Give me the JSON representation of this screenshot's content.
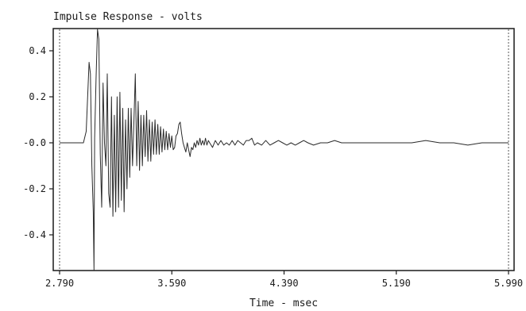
{
  "chart_data": {
    "type": "line",
    "title": "Impulse Response - volts",
    "xlabel": "Time - msec",
    "ylabel": "",
    "xlim": [
      2.79,
      5.99
    ],
    "ylim": [
      -0.6,
      0.6
    ],
    "x_ticks": [
      2.79,
      3.59,
      4.39,
      5.19,
      5.99
    ],
    "x_tick_labels": [
      "2.790",
      "3.590",
      "4.390",
      "5.190",
      "5.990"
    ],
    "y_ticks": [
      0.4,
      0.2,
      0.0,
      -0.2,
      -0.4
    ],
    "y_tick_labels": [
      "0.4",
      "0.2",
      "-0.0",
      "-0.2",
      "-0.4"
    ],
    "grid": false,
    "legend": "none",
    "colors": {
      "line": "#2a2a2a",
      "axes": "#1a1a1a",
      "background": "#ffffff"
    },
    "series": [
      {
        "x": [
          2.79,
          2.92,
          2.96,
          2.98,
          3.0,
          3.01,
          3.02,
          3.03,
          3.035,
          3.04,
          3.05,
          3.06,
          3.07,
          3.08,
          3.09,
          3.1,
          3.11,
          3.12,
          3.13,
          3.14,
          3.15,
          3.16,
          3.17,
          3.18,
          3.19,
          3.2,
          3.21,
          3.22,
          3.23,
          3.24,
          3.25,
          3.26,
          3.27,
          3.28,
          3.29,
          3.3,
          3.31,
          3.32,
          3.33,
          3.34,
          3.35,
          3.36,
          3.37,
          3.38,
          3.39,
          3.4,
          3.41,
          3.42,
          3.43,
          3.44,
          3.45,
          3.46,
          3.47,
          3.48,
          3.49,
          3.5,
          3.51,
          3.52,
          3.53,
          3.54,
          3.55,
          3.56,
          3.57,
          3.58,
          3.59,
          3.6,
          3.61,
          3.62,
          3.63,
          3.64,
          3.65,
          3.66,
          3.67,
          3.68,
          3.69,
          3.7,
          3.71,
          3.72,
          3.73,
          3.74,
          3.75,
          3.76,
          3.77,
          3.78,
          3.79,
          3.8,
          3.81,
          3.82,
          3.83,
          3.84,
          3.85,
          3.86,
          3.88,
          3.9,
          3.92,
          3.94,
          3.96,
          3.98,
          4.0,
          4.02,
          4.04,
          4.06,
          4.08,
          4.1,
          4.12,
          4.14,
          4.16,
          4.18,
          4.2,
          4.23,
          4.26,
          4.29,
          4.32,
          4.35,
          4.38,
          4.41,
          4.44,
          4.47,
          4.5,
          4.53,
          4.56,
          4.6,
          4.65,
          4.7,
          4.75,
          4.8,
          4.85,
          4.9,
          4.95,
          5.0,
          5.05,
          5.1,
          5.15,
          5.2,
          5.3,
          5.4,
          5.5,
          5.6,
          5.7,
          5.8,
          5.9,
          5.99
        ],
        "y": [
          0.0,
          0.0,
          0.0,
          0.05,
          0.35,
          0.3,
          -0.1,
          -0.3,
          -0.6,
          0.02,
          0.28,
          0.55,
          0.45,
          -0.05,
          -0.28,
          0.26,
          0.0,
          -0.1,
          0.3,
          -0.22,
          -0.28,
          0.2,
          -0.32,
          0.12,
          -0.3,
          0.2,
          -0.28,
          0.22,
          -0.25,
          0.15,
          -0.3,
          0.1,
          -0.2,
          0.15,
          -0.15,
          0.15,
          -0.1,
          0.1,
          0.3,
          -0.1,
          0.18,
          -0.12,
          0.12,
          -0.1,
          0.12,
          -0.06,
          0.14,
          -0.08,
          0.1,
          -0.08,
          0.09,
          -0.05,
          0.1,
          -0.05,
          0.08,
          -0.05,
          0.07,
          -0.04,
          0.06,
          -0.03,
          0.05,
          -0.03,
          0.04,
          -0.02,
          0.03,
          -0.03,
          -0.02,
          0.03,
          0.04,
          0.08,
          0.09,
          0.04,
          0.0,
          -0.02,
          -0.04,
          0.0,
          -0.03,
          -0.06,
          -0.02,
          -0.03,
          0.0,
          -0.02,
          0.01,
          -0.01,
          0.02,
          -0.01,
          0.01,
          -0.01,
          0.02,
          -0.01,
          0.01,
          0.0,
          -0.02,
          0.01,
          -0.01,
          0.01,
          -0.01,
          0.0,
          -0.01,
          0.01,
          -0.01,
          0.01,
          0.0,
          -0.01,
          0.01,
          0.01,
          0.02,
          -0.01,
          0.0,
          -0.01,
          0.01,
          -0.01,
          0.0,
          0.01,
          0.0,
          -0.01,
          0.0,
          -0.01,
          0.0,
          0.01,
          0.0,
          -0.01,
          0.0,
          0.0,
          0.01,
          0.0,
          0.0,
          0.0,
          0.0,
          0.0,
          0.0,
          0.0,
          0.0,
          0.0,
          0.0,
          0.01,
          0.0,
          0.0,
          -0.01,
          0.0,
          0.0,
          0.0
        ]
      }
    ]
  }
}
